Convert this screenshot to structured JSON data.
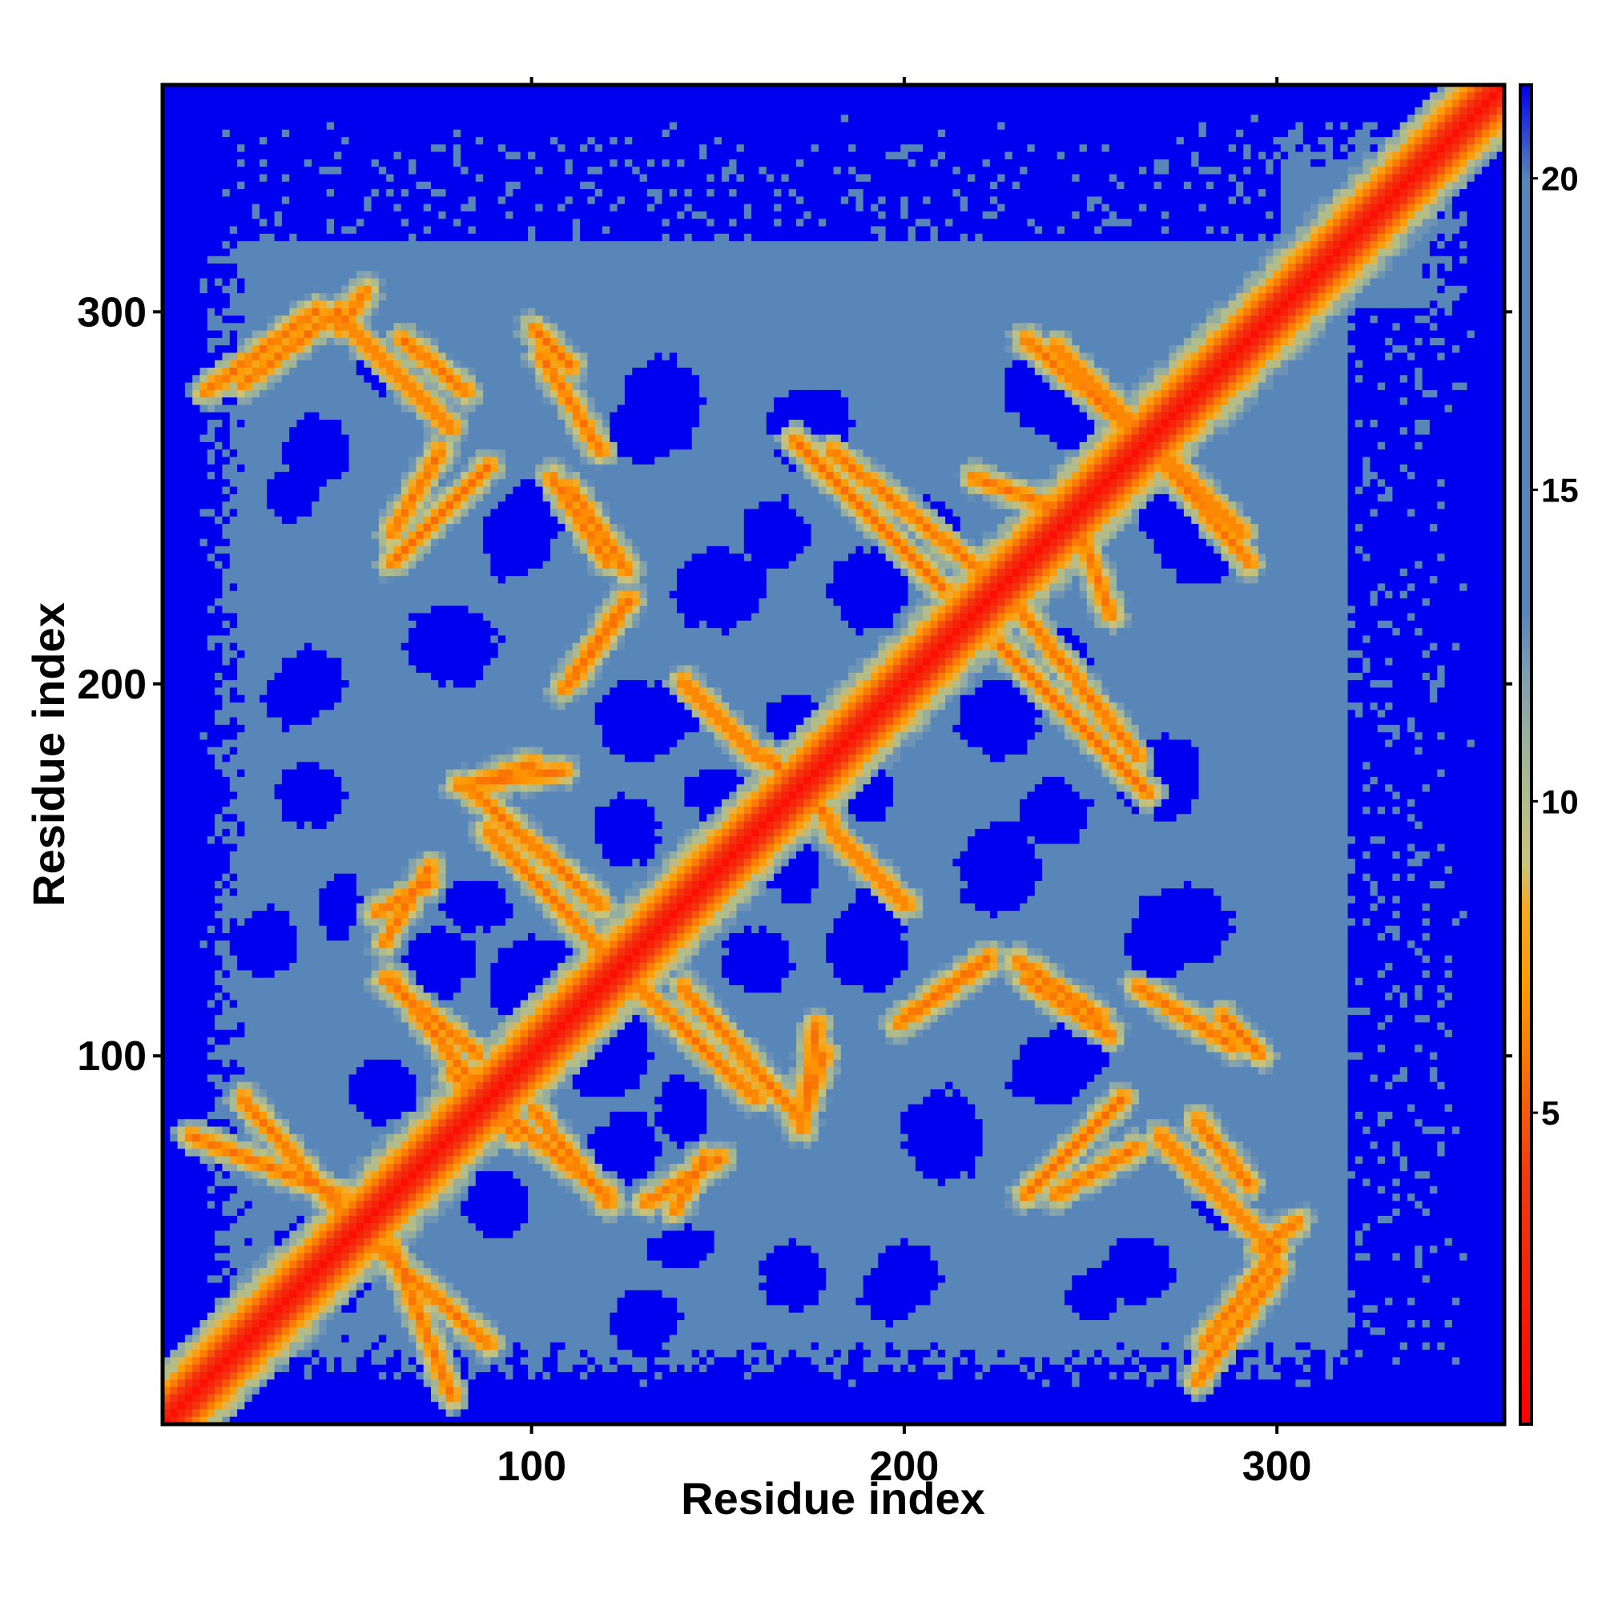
{
  "chart_data": {
    "type": "heatmap",
    "title": "",
    "xlabel": "Residue index",
    "ylabel": "Residue index",
    "xlim": [
      1,
      361
    ],
    "ylim": [
      1,
      361
    ],
    "x_ticks": [
      100,
      200,
      300
    ],
    "y_ticks": [
      100,
      200,
      300
    ],
    "colorbar": {
      "ticks": [
        5,
        10,
        15,
        20
      ],
      "range": [
        0,
        21.5
      ],
      "stops": [
        {
          "value": 0.0,
          "color": "#ff0000"
        },
        {
          "value": 4.0,
          "color": "#f23a10"
        },
        {
          "value": 7.0,
          "color": "#ff9900"
        },
        {
          "value": 8.3,
          "color": "#f5a820"
        },
        {
          "value": 9.0,
          "color": "#c9c47a"
        },
        {
          "value": 10.5,
          "color": "#a6b892"
        },
        {
          "value": 12.0,
          "color": "#7f9fb2"
        },
        {
          "value": 13.0,
          "color": "#5886b8"
        },
        {
          "value": 20.0,
          "color": "#5886b8"
        },
        {
          "value": 21.5,
          "color": "#0000f0"
        }
      ]
    },
    "colors": {
      "far": "#0000f0",
      "mid": "#5886b8",
      "near": "#ff9900",
      "contact": "#ff0000"
    },
    "structure": {
      "diagonal": [
        [
          1,
          1
        ],
        [
          361,
          361
        ]
      ],
      "contact_bands": [
        {
          "from": [
            12,
            278
          ],
          "to": [
            42,
            300
          ]
        },
        {
          "from": [
            48,
            298
          ],
          "to": [
            78,
            268
          ]
        },
        {
          "from": [
            102,
            288
          ],
          "to": [
            118,
            262
          ]
        },
        {
          "from": [
            110,
            252
          ],
          "to": [
            125,
            230
          ]
        },
        {
          "from": [
            108,
            198
          ],
          "to": [
            125,
            222
          ]
        },
        {
          "from": [
            62,
            232
          ],
          "to": [
            88,
            258
          ]
        },
        {
          "from": [
            88,
            160
          ],
          "to": [
            118,
            128
          ]
        },
        {
          "from": [
            80,
            172
          ],
          "to": [
            108,
            176
          ]
        },
        {
          "from": [
            58,
            138
          ],
          "to": [
            72,
            146
          ]
        },
        {
          "from": [
            62,
            120
          ],
          "to": [
            95,
            78
          ]
        },
        {
          "from": [
            100,
            85
          ],
          "to": [
            120,
            60
          ]
        },
        {
          "from": [
            130,
            60
          ],
          "to": [
            150,
            72
          ]
        },
        {
          "from": [
            140,
            118
          ],
          "to": [
            172,
            82
          ]
        },
        {
          "from": [
            172,
            82
          ],
          "to": [
            178,
            100
          ]
        },
        {
          "from": [
            165,
            178
          ],
          "to": [
            180,
            162
          ]
        },
        {
          "from": [
            180,
            160
          ],
          "to": [
            200,
            140
          ]
        },
        {
          "from": [
            170,
            265
          ],
          "to": [
            210,
            225
          ]
        },
        {
          "from": [
            218,
            255
          ],
          "to": [
            245,
            245
          ]
        },
        {
          "from": [
            232,
            292
          ],
          "to": [
            258,
            270
          ]
        },
        {
          "from": [
            268,
            262
          ],
          "to": [
            290,
            240
          ]
        },
        {
          "from": [
            230,
            220
          ],
          "to": [
            262,
            180
          ]
        },
        {
          "from": [
            200,
            110
          ],
          "to": [
            222,
            126
          ]
        },
        {
          "from": [
            232,
            120
          ],
          "to": [
            255,
            105
          ]
        },
        {
          "from": [
            285,
            110
          ],
          "to": [
            295,
            100
          ]
        },
        {
          "from": [
            278,
            82
          ],
          "to": [
            292,
            65
          ]
        },
        {
          "from": [
            240,
            62
          ],
          "to": [
            262,
            75
          ]
        },
        {
          "from": [
            280,
            22
          ],
          "to": [
            300,
            48
          ]
        },
        {
          "from": [
            295,
            48
          ],
          "to": [
            305,
            55
          ]
        },
        {
          "from": [
            58,
            48
          ],
          "to": [
            88,
            22
          ]
        },
        {
          "from": [
            8,
            78
          ],
          "to": [
            48,
            62
          ]
        },
        {
          "from": [
            12,
            18
          ],
          "to": [
            22,
            28
          ]
        }
      ],
      "far_regions": [
        {
          "center": [
            42,
            262
          ],
          "radius": [
            10,
            10
          ]
        },
        {
          "center": [
            95,
            238
          ],
          "radius": [
            10,
            12
          ]
        },
        {
          "center": [
            130,
            268
          ],
          "radius": [
            12,
            10
          ]
        },
        {
          "center": [
            172,
            268
          ],
          "radius": [
            10,
            12
          ]
        },
        {
          "center": [
            78,
            210
          ],
          "radius": [
            14,
            12
          ]
        },
        {
          "center": [
            150,
            225
          ],
          "radius": [
            14,
            12
          ]
        },
        {
          "center": [
            190,
            225
          ],
          "radius": [
            12,
            12
          ]
        },
        {
          "center": [
            35,
            195
          ],
          "radius": [
            8,
            8
          ]
        },
        {
          "center": [
            135,
            190
          ],
          "radius": [
            10,
            8
          ]
        },
        {
          "center": [
            170,
            190
          ],
          "radius": [
            8,
            8
          ]
        },
        {
          "center": [
            190,
            170
          ],
          "radius": [
            8,
            8
          ]
        },
        {
          "center": [
            150,
            170
          ],
          "radius": [
            10,
            8
          ]
        },
        {
          "center": [
            238,
            205
          ],
          "radius": [
            12,
            12
          ]
        },
        {
          "center": [
            240,
            165
          ],
          "radius": [
            10,
            10
          ]
        },
        {
          "center": [
            270,
            178
          ],
          "radius": [
            10,
            8
          ]
        },
        {
          "center": [
            280,
            235
          ],
          "radius": [
            12,
            10
          ]
        },
        {
          "center": [
            247,
            272
          ],
          "radius": [
            14,
            12
          ]
        },
        {
          "center": [
            75,
            125
          ],
          "radius": [
            10,
            10
          ]
        },
        {
          "center": [
            100,
            120
          ],
          "radius": [
            14,
            12
          ]
        },
        {
          "center": [
            160,
            125
          ],
          "radius": [
            10,
            10
          ]
        },
        {
          "center": [
            190,
            128
          ],
          "radius": [
            12,
            12
          ]
        },
        {
          "center": [
            275,
            135
          ],
          "radius": [
            14,
            12
          ]
        },
        {
          "center": [
            48,
            140
          ],
          "radius": [
            6,
            10
          ]
        },
        {
          "center": [
            48,
            40
          ],
          "radius": [
            10,
            10
          ]
        },
        {
          "center": [
            130,
            28
          ],
          "radius": [
            10,
            10
          ]
        },
        {
          "center": [
            170,
            40
          ],
          "radius": [
            10,
            10
          ]
        },
        {
          "center": [
            200,
            40
          ],
          "radius": [
            10,
            10
          ]
        },
        {
          "center": [
            250,
            35
          ],
          "radius": [
            8,
            8
          ]
        },
        {
          "center": [
            140,
            85
          ],
          "radius": [
            8,
            10
          ]
        },
        {
          "center": [
            245,
            100
          ],
          "radius": [
            10,
            10
          ]
        },
        {
          "center": [
            285,
            60
          ],
          "radius": [
            8,
            8
          ]
        },
        {
          "center": [
            60,
            90
          ],
          "radius": [
            10,
            10
          ]
        }
      ]
    }
  }
}
